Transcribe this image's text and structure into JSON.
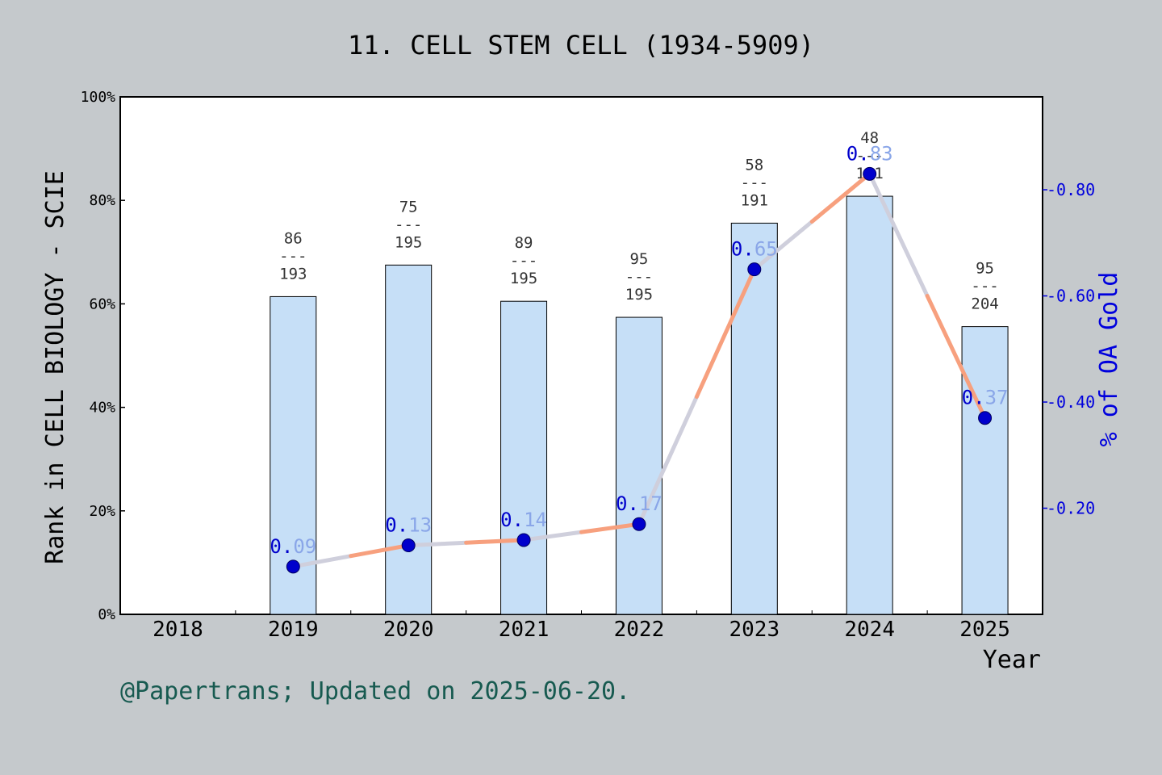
{
  "chart_data": {
    "type": "bar",
    "title": "11. CELL STEM CELL (1934-5909)",
    "xlabel": "Year",
    "ylabel": "Rank in CELL BIOLOGY - SCIE",
    "y2label": "% of OA Gold",
    "categories": [
      "2018",
      "2019",
      "2020",
      "2021",
      "2022",
      "2023",
      "2024",
      "2025"
    ],
    "ylim": [
      0,
      100
    ],
    "y_ticks": [
      "0%",
      "20%",
      "40%",
      "60%",
      "80%",
      "100%"
    ],
    "y2lim": [
      0,
      0.975
    ],
    "y2_ticks": [
      "0.20",
      "0.40",
      "0.60",
      "0.80"
    ],
    "series": [
      {
        "kind": "bar",
        "values": [
          null,
          61.4,
          67.5,
          60.5,
          57.4,
          75.6,
          80.8,
          55.6
        ],
        "labels": [
          null,
          {
            "rank": "86",
            "sep": "---",
            "total": "193"
          },
          {
            "rank": "75",
            "sep": "---",
            "total": "195"
          },
          {
            "rank": "89",
            "sep": "---",
            "total": "195"
          },
          {
            "rank": "95",
            "sep": "---",
            "total": "195"
          },
          {
            "rank": "58",
            "sep": "---",
            "total": "191"
          },
          {
            "rank": "48",
            "sep": "---",
            "total": "191"
          },
          {
            "rank": "95",
            "sep": "---",
            "total": "204"
          }
        ]
      },
      {
        "kind": "line",
        "axis": "right",
        "values": [
          null,
          0.09,
          0.13,
          0.14,
          0.17,
          0.65,
          0.83,
          0.37
        ],
        "labels": [
          null,
          "0.09",
          "0.13",
          "0.14",
          "0.17",
          "0.65",
          "0.83",
          "0.37"
        ]
      }
    ],
    "grid": false,
    "legend": "none"
  },
  "footer": "@Papertrans; Updated on 2025-06-20.",
  "colors": {
    "background": "#c5c9cc",
    "plot_background": "#ffffff",
    "bar_fill": "#c6dff7",
    "line_orange": "#f7a07e",
    "line_gray": "#cfcfdc",
    "marker": "#0000cc",
    "right_axis": "#0000dd",
    "footer_text": "#175a50"
  }
}
